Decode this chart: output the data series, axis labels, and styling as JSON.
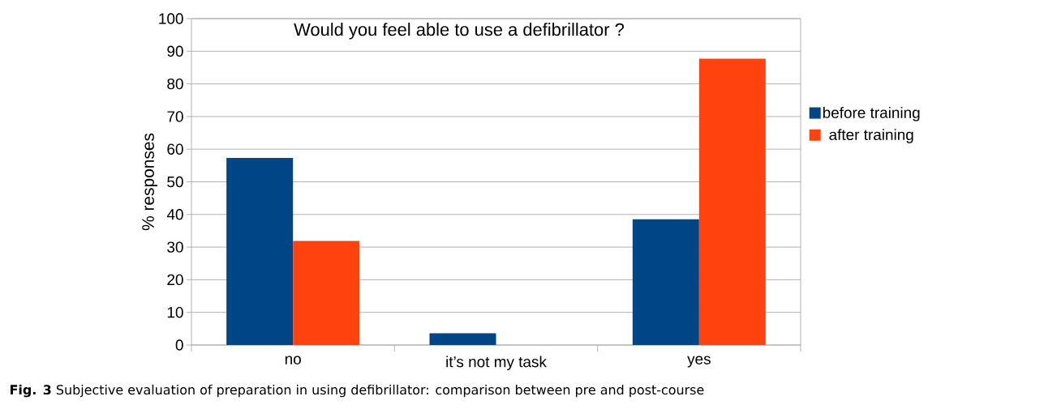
{
  "chart_data": {
    "type": "bar",
    "title": "Would you feel able to use a defibrillator ?",
    "ylabel": "% responses",
    "categories": [
      "no",
      "it’s not my task",
      "yes"
    ],
    "series": [
      {
        "name": "before training",
        "color": "#004586",
        "values": [
          57.3,
          3.6,
          38.5
        ]
      },
      {
        "name": "after training",
        "color": "#ff420e",
        "values": [
          31.9,
          0,
          87.7
        ]
      }
    ],
    "ylim": [
      0,
      100
    ],
    "yticks": [
      0,
      10,
      20,
      30,
      40,
      50,
      60,
      70,
      80,
      90,
      100
    ],
    "grid": "y",
    "legend": "right",
    "annotations": [
      "**Fig. 3** Subjective evaluation of preparation in using defibrillator: comparison between pre and post-course"
    ]
  }
}
